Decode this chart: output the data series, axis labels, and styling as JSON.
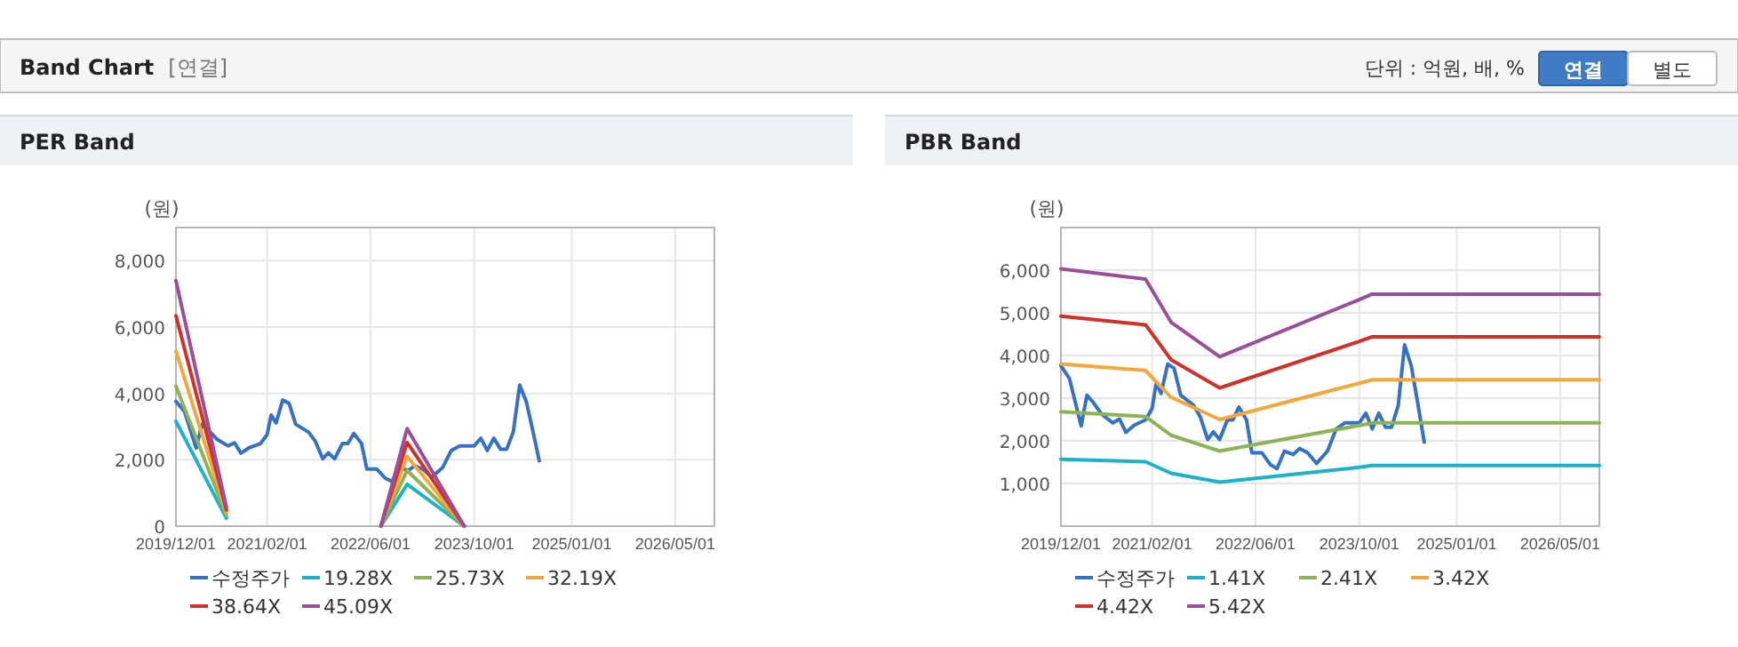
{
  "chart_data": [
    {
      "type": "other",
      "title": "Band Chart",
      "subtitle": "[연결]",
      "annotations": [
        "단위 : 억원, 배, %",
        "연결",
        "별도"
      ]
    },
    {
      "type": "line",
      "title": "PER Band",
      "ylabel": "(원)",
      "xlim": [
        "2019-12-01",
        "2026-11-01"
      ],
      "ylim": [
        0,
        9000
      ],
      "xticks": [
        {
          "value": "2019-12-01",
          "label": "2019/12/01"
        },
        {
          "value": "2021-02-01",
          "label": "2021/02/01"
        },
        {
          "value": "2022-06-01",
          "label": "2022/06/01"
        },
        {
          "value": "2023-10-01",
          "label": "2023/10/01"
        },
        {
          "value": "2025-01-01",
          "label": "2025/01/01"
        },
        {
          "value": "2026-05-01",
          "label": "2026/05/01"
        }
      ],
      "yticks": [
        0,
        {
          "value": 2000,
          "label": "2,000"
        },
        {
          "value": 4000,
          "label": "4,000"
        },
        {
          "value": 6000,
          "label": "6,000"
        },
        {
          "value": 8000,
          "label": "8,000"
        }
      ],
      "grid": true,
      "legend": "bottom",
      "marker": "none",
      "line_style": "solid",
      "series": [
        {
          "name": "수정주가",
          "color": "#3572c6",
          "x": [
            "2019-12-01",
            "2020-01-10",
            "2020-03-05",
            "2020-04-01",
            "2020-05-01",
            "2020-06-10",
            "2020-08-01",
            "2020-09-01",
            "2020-10-01",
            "2020-11-10",
            "2021-01-01",
            "2021-02-01",
            "2021-02-20",
            "2021-03-15",
            "2021-04-15",
            "2021-05-15",
            "2021-06-15",
            "2021-08-15",
            "2021-09-15",
            "2021-10-20",
            "2021-11-15",
            "2021-12-15",
            "2022-01-20",
            "2022-02-15",
            "2022-03-15",
            "2022-04-20",
            "2022-05-15",
            "2022-07-01",
            "2022-08-10",
            "2022-09-10",
            "2022-10-15",
            "2022-11-25",
            "2022-12-25",
            "2023-02-01",
            "2023-03-15",
            "2023-05-05",
            "2023-06-15",
            "2023-07-25",
            "2023-10-01",
            "2023-11-01",
            "2023-12-01",
            "2024-01-01",
            "2024-02-01",
            "2024-03-01",
            "2024-04-01",
            "2024-05-01",
            "2024-06-01",
            "2024-07-01",
            "2024-08-01"
          ],
          "values": [
            3760,
            3460,
            2350,
            3070,
            2900,
            2620,
            2420,
            2510,
            2200,
            2370,
            2490,
            2760,
            3350,
            3110,
            3800,
            3700,
            3070,
            2830,
            2560,
            2030,
            2210,
            2030,
            2490,
            2490,
            2790,
            2490,
            1720,
            1720,
            1440,
            1350,
            1760,
            1680,
            1820,
            1720,
            1470,
            1760,
            2280,
            2420,
            2420,
            2650,
            2280,
            2650,
            2320,
            2320,
            2830,
            4250,
            3760,
            2900,
            1970
          ]
        },
        {
          "name": "19.28X",
          "color": "#1cb3c8",
          "x": [
            "2019-12-01",
            "2020-07-25",
            "2021-06-01",
            "2022-07-20",
            "2022-11-20",
            "2023-08-15"
          ],
          "values": [
            3160,
            240,
            null,
            0,
            1260,
            0
          ]
        },
        {
          "name": "25.73X",
          "color": "#8db354",
          "x": [
            "2019-12-01",
            "2020-07-25",
            "2021-06-01",
            "2022-07-20",
            "2022-11-20",
            "2023-08-15"
          ],
          "values": [
            4220,
            320,
            null,
            0,
            1680,
            0
          ]
        },
        {
          "name": "32.19X",
          "color": "#f4a73a",
          "x": [
            "2019-12-01",
            "2020-07-25",
            "2021-06-01",
            "2022-07-20",
            "2022-11-20",
            "2023-08-15"
          ],
          "values": [
            5280,
            410,
            null,
            0,
            2100,
            0
          ]
        },
        {
          "name": "38.64X",
          "color": "#d3302c",
          "x": [
            "2019-12-01",
            "2020-07-25",
            "2021-06-01",
            "2022-07-20",
            "2022-11-20",
            "2023-08-15"
          ],
          "values": [
            6340,
            490,
            null,
            0,
            2520,
            0
          ]
        },
        {
          "name": "45.09X",
          "color": "#9b4f98",
          "x": [
            "2019-12-01",
            "2020-07-25",
            "2021-06-01",
            "2022-07-20",
            "2022-11-20",
            "2023-08-15"
          ],
          "values": [
            7400,
            570,
            null,
            0,
            2940,
            0
          ]
        }
      ]
    },
    {
      "type": "line",
      "title": "PBR Band",
      "ylabel": "(원)",
      "xlim": [
        "2019-12-01",
        "2026-11-01"
      ],
      "ylim": [
        0,
        7000
      ],
      "xticks": [
        {
          "value": "2019-12-01",
          "label": "2019/12/01"
        },
        {
          "value": "2021-02-01",
          "label": "2021/02/01"
        },
        {
          "value": "2022-06-01",
          "label": "2022/06/01"
        },
        {
          "value": "2023-10-01",
          "label": "2023/10/01"
        },
        {
          "value": "2025-01-01",
          "label": "2025/01/01"
        },
        {
          "value": "2026-05-01",
          "label": "2026/05/01"
        }
      ],
      "yticks": [
        {
          "value": 1000,
          "label": "1,000"
        },
        {
          "value": 2000,
          "label": "2,000"
        },
        {
          "value": 3000,
          "label": "3,000"
        },
        {
          "value": 4000,
          "label": "4,000"
        },
        {
          "value": 5000,
          "label": "5,000"
        },
        {
          "value": 6000,
          "label": "6,000"
        }
      ],
      "grid": true,
      "legend": "bottom",
      "marker": "none",
      "line_style": "solid",
      "series": [
        {
          "name": "수정주가",
          "color": "#3572c6",
          "x": [
            "2019-12-01",
            "2020-01-10",
            "2020-03-05",
            "2020-04-01",
            "2020-05-01",
            "2020-06-10",
            "2020-08-01",
            "2020-09-01",
            "2020-10-01",
            "2020-11-10",
            "2021-01-01",
            "2021-02-01",
            "2021-02-20",
            "2021-03-15",
            "2021-04-15",
            "2021-05-15",
            "2021-06-15",
            "2021-08-15",
            "2021-09-15",
            "2021-10-20",
            "2021-11-15",
            "2021-12-15",
            "2022-01-20",
            "2022-02-15",
            "2022-03-15",
            "2022-04-20",
            "2022-05-15",
            "2022-07-01",
            "2022-08-10",
            "2022-09-10",
            "2022-10-15",
            "2022-11-25",
            "2022-12-25",
            "2023-02-01",
            "2023-03-15",
            "2023-05-05",
            "2023-06-15",
            "2023-07-25",
            "2023-10-01",
            "2023-11-01",
            "2023-12-01",
            "2024-01-01",
            "2024-02-01",
            "2024-03-01",
            "2024-04-01",
            "2024-05-01",
            "2024-06-01",
            "2024-07-01",
            "2024-08-01"
          ],
          "values": [
            3760,
            3460,
            2350,
            3070,
            2900,
            2620,
            2420,
            2510,
            2200,
            2370,
            2490,
            2760,
            3350,
            3110,
            3800,
            3700,
            3070,
            2830,
            2560,
            2030,
            2210,
            2030,
            2490,
            2490,
            2790,
            2490,
            1720,
            1720,
            1440,
            1350,
            1760,
            1680,
            1820,
            1720,
            1470,
            1760,
            2280,
            2420,
            2420,
            2650,
            2280,
            2650,
            2320,
            2320,
            2830,
            4250,
            3760,
            2900,
            1970
          ]
        },
        {
          "name": "1.41X",
          "color": "#1cb3c8",
          "x": [
            "2019-12-01",
            "2021-01-01",
            "2021-05-01",
            "2021-12-15",
            "2023-10-01",
            "2023-12-01",
            "2026-11-01"
          ],
          "values": [
            1570,
            1510,
            1240,
            1030,
            1380,
            1420,
            1420
          ]
        },
        {
          "name": "2.41X",
          "color": "#8db354",
          "x": [
            "2019-12-01",
            "2021-01-01",
            "2021-05-01",
            "2021-12-15",
            "2023-10-01",
            "2023-12-01",
            "2026-11-01"
          ],
          "values": [
            2680,
            2570,
            2130,
            1760,
            2360,
            2420,
            2420
          ]
        },
        {
          "name": "3.42X",
          "color": "#f4a73a",
          "x": [
            "2019-12-01",
            "2021-01-01",
            "2021-05-01",
            "2021-12-15",
            "2023-10-01",
            "2023-12-01",
            "2026-11-01"
          ],
          "values": [
            3800,
            3650,
            3020,
            2500,
            3350,
            3430,
            3430
          ]
        },
        {
          "name": "4.42X",
          "color": "#d3302c",
          "x": [
            "2019-12-01",
            "2021-01-01",
            "2021-05-01",
            "2021-12-15",
            "2023-10-01",
            "2023-12-01",
            "2026-11-01"
          ],
          "values": [
            4920,
            4720,
            3900,
            3240,
            4330,
            4440,
            4440
          ]
        },
        {
          "name": "5.42X",
          "color": "#9b4f98",
          "x": [
            "2019-12-01",
            "2021-01-01",
            "2021-05-01",
            "2021-12-15",
            "2023-10-01",
            "2023-12-01",
            "2026-11-01"
          ],
          "values": [
            6030,
            5790,
            4780,
            3970,
            5310,
            5440,
            5440
          ]
        }
      ]
    }
  ]
}
